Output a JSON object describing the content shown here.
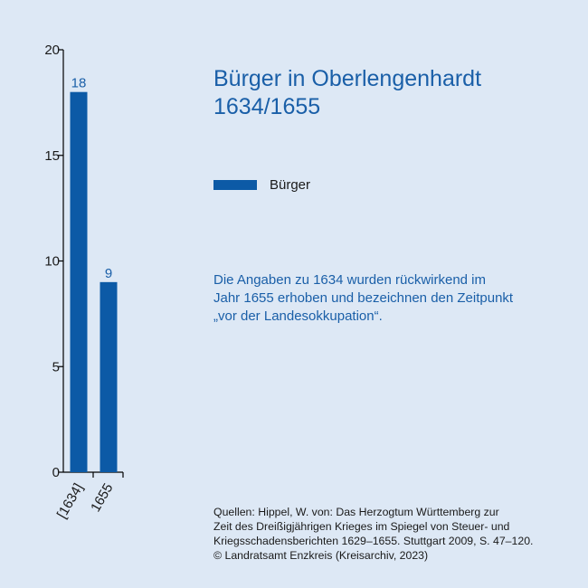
{
  "chart_data": {
    "type": "bar",
    "title_lines": [
      "Bürger in Oberlengenhardt",
      "1634/1655"
    ],
    "categories": [
      "[1634]",
      "1655"
    ],
    "series": [
      {
        "name": "Bürger",
        "values": [
          18,
          9
        ]
      }
    ],
    "data_labels": [
      "18",
      "9"
    ],
    "ylim": [
      0,
      20
    ],
    "yticks": [
      0,
      5,
      10,
      15,
      20
    ],
    "xlabel": "",
    "ylabel": "",
    "legend_position": "right",
    "grid": false,
    "bar_color": "#0c5aa6",
    "label_color": "#1a5fa8"
  },
  "legend": {
    "label": "Bürger"
  },
  "note_lines": [
    "Die Angaben zu 1634 wurden rückwirkend im",
    "Jahr 1655 erhoben und bezeichnen den Zeitpunkt",
    "„vor der Landesokkupation“."
  ],
  "source_lines": [
    "Quellen: Hippel, W. von: Das Herzogtum Württemberg zur",
    "Zeit des Dreißigjährigen Krieges im Spiegel von Steuer- und",
    "Kriegsschadensberichten 1629–1655. Stuttgart 2009, S. 47–120.",
    "© Landratsamt Enzkreis (Kreisarchiv, 2023)"
  ]
}
